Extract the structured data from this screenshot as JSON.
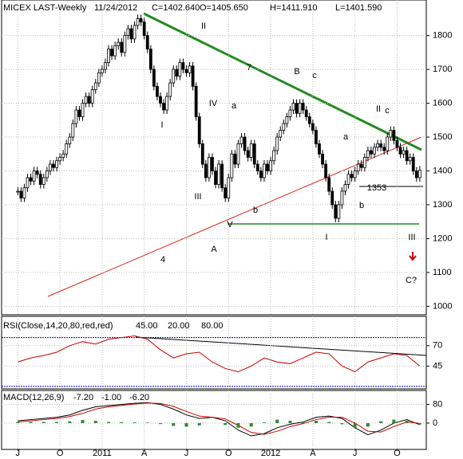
{
  "chart_data": [
    {
      "type": "candlestick",
      "title": "MICEX LAST-Weekly",
      "date": "11/24/2012",
      "stats": [
        "C=1402.640",
        "O=1405.650",
        "H=1411.910",
        "L=1401.590"
      ],
      "values": [
        1340,
        1320,
        1350,
        1380,
        1370,
        1400,
        1390,
        1360,
        1380,
        1400,
        1420,
        1410,
        1430,
        1440,
        1450,
        1480,
        1500,
        1540,
        1580,
        1560,
        1600,
        1620,
        1600,
        1640,
        1660,
        1690,
        1700,
        1720,
        1760,
        1740,
        1770,
        1780,
        1750,
        1800,
        1820,
        1790,
        1830,
        1850,
        1840,
        1800,
        1760,
        1700,
        1650,
        1620,
        1600,
        1580,
        1620,
        1660,
        1700,
        1680,
        1720,
        1700,
        1690,
        1710,
        1650,
        1560,
        1480,
        1420,
        1380,
        1440,
        1400,
        1360,
        1420,
        1350,
        1320,
        1380,
        1450,
        1420,
        1480,
        1500,
        1460,
        1440,
        1480,
        1420,
        1400,
        1380,
        1420,
        1400,
        1430,
        1460,
        1500,
        1520,
        1540,
        1560,
        1580,
        1600,
        1570,
        1600,
        1580,
        1560,
        1540,
        1520,
        1480,
        1450,
        1420,
        1380,
        1340,
        1300,
        1260,
        1300,
        1340,
        1360,
        1390,
        1380,
        1400,
        1420,
        1410,
        1440,
        1460,
        1450,
        1470,
        1480,
        1470,
        1460,
        1500,
        1520,
        1490,
        1470,
        1450,
        1460,
        1430,
        1440,
        1400,
        1380,
        1402.64
      ],
      "color": "#000000",
      "xlim": [
        -5,
        126
      ],
      "xticks": [
        {
          "value": 0,
          "label": "J"
        },
        {
          "value": 13,
          "label": "O"
        },
        {
          "value": 26,
          "label": "2011"
        },
        {
          "value": 39,
          "label": "A"
        },
        {
          "value": 52,
          "label": "J"
        },
        {
          "value": 65,
          "label": "O"
        },
        {
          "value": 78,
          "label": "2012"
        },
        {
          "value": 91,
          "label": "A"
        },
        {
          "value": 104,
          "label": "J"
        },
        {
          "value": 117,
          "label": "O"
        }
      ],
      "ylim": [
        975,
        1905
      ],
      "yticks": [
        1000,
        1100,
        1200,
        1300,
        1400,
        1500,
        1600,
        1700,
        1800
      ],
      "grid": true,
      "annotations": [
        "II",
        "I",
        "III",
        "IV",
        "V",
        "A",
        "a",
        "b",
        "B",
        "c",
        "7",
        "4",
        "I",
        "II",
        "c",
        "a",
        "b",
        "III",
        "C?",
        "1353"
      ]
    },
    {
      "type": "line",
      "title": "RSI(Close,14,20,80,red,red)",
      "x": [
        0,
        4,
        8,
        12,
        16,
        20,
        24,
        28,
        32,
        36,
        40,
        44,
        48,
        52,
        56,
        60,
        64,
        68,
        72,
        76,
        80,
        84,
        88,
        92,
        96,
        100,
        104,
        108,
        112,
        116,
        120,
        124
      ],
      "series": [
        {
          "color": "#cc0000",
          "values": [
            50,
            55,
            58,
            62,
            70,
            75,
            72,
            78,
            80,
            82,
            78,
            65,
            55,
            60,
            62,
            50,
            42,
            38,
            45,
            55,
            50,
            48,
            55,
            62,
            60,
            45,
            38,
            50,
            55,
            60,
            58,
            45
          ],
          "last_value_label": "45.00"
        }
      ],
      "reference_lines": [
        {
          "value": 20,
          "label": "20.00",
          "color": "#0000cc"
        },
        {
          "value": 80,
          "label": "80.00",
          "color": "#0000cc"
        }
      ],
      "ylim": [
        17,
        106
      ],
      "yticks": [
        45,
        70
      ]
    },
    {
      "type": "macd",
      "title": "MACD(12,26,9)",
      "x": [
        0,
        4,
        8,
        12,
        16,
        20,
        24,
        28,
        32,
        36,
        40,
        44,
        48,
        52,
        56,
        60,
        64,
        68,
        72,
        76,
        80,
        84,
        88,
        92,
        96,
        100,
        104,
        108,
        112,
        116,
        120,
        124
      ],
      "series": [
        {
          "kind": "line",
          "color": "#000000",
          "values": [
            10,
            15,
            20,
            25,
            35,
            55,
            70,
            75,
            80,
            85,
            88,
            80,
            60,
            35,
            20,
            25,
            10,
            -30,
            -55,
            -45,
            -20,
            -5,
            5,
            25,
            30,
            20,
            -20,
            -50,
            -30,
            0,
            15,
            -7.2
          ],
          "last_value_label": "-7.20"
        },
        {
          "kind": "line",
          "color": "#cc0000",
          "values": [
            5,
            10,
            15,
            20,
            28,
            42,
            60,
            70,
            76,
            82,
            86,
            84,
            72,
            50,
            30,
            25,
            18,
            -10,
            -40,
            -48,
            -35,
            -15,
            -2,
            15,
            25,
            25,
            0,
            -35,
            -38,
            -15,
            5,
            -1
          ],
          "last_value_label": "-1.00"
        },
        {
          "kind": "bar",
          "color": "#2e8b2e",
          "values": [
            5,
            5,
            5,
            5,
            7,
            13,
            10,
            5,
            4,
            3,
            2,
            -4,
            -12,
            -15,
            -10,
            0,
            -8,
            -20,
            -15,
            3,
            15,
            10,
            7,
            10,
            5,
            -5,
            -20,
            -15,
            8,
            15,
            10,
            -6.2
          ],
          "last_value_label": "-6.20"
        }
      ],
      "ylim": [
        -113,
        140
      ],
      "yticks": [
        0,
        80
      ]
    }
  ]
}
